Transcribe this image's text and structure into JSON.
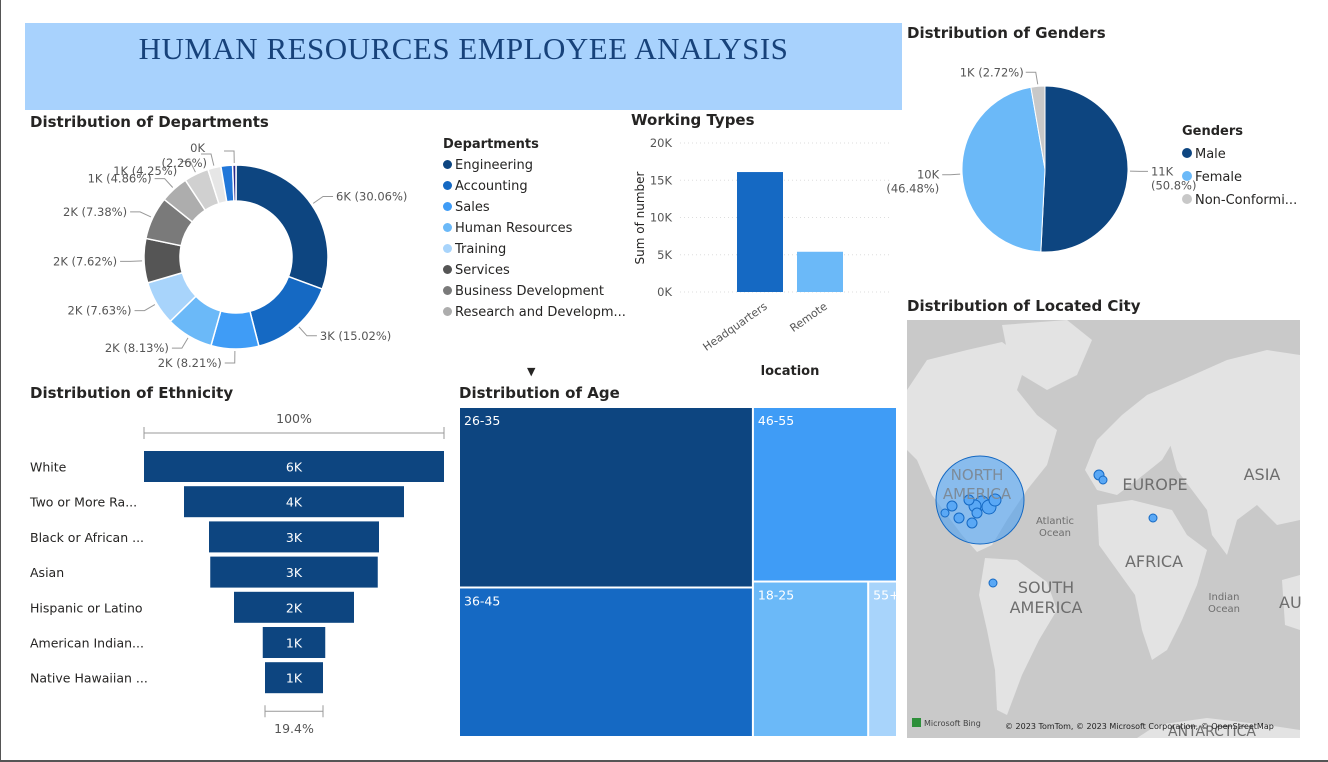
{
  "page_title": "HUMAN RESOURCES EMPLOYEE ANALYSIS",
  "colors": {
    "banner": "#a8d2fd",
    "title": "#17427a",
    "dark_blue": "#0d4580",
    "mid_blue": "#1569c3",
    "bright_blue": "#3f9cf6",
    "light_blue": "#6bb9f8",
    "pale_blue": "#a8d4fb",
    "map_land": "#e2e2e2",
    "map_water": "#c9c9c9"
  },
  "departments_legend": {
    "title": "Departments",
    "items": [
      "Engineering",
      "Accounting",
      "Sales",
      "Human Resources",
      "Training",
      "Services",
      "Business Development",
      "Research and Developm..."
    ],
    "more_icon": "caret-down-icon"
  },
  "genders_legend": {
    "title": "Genders",
    "items": [
      "Male",
      "Female",
      "Non-Conformi..."
    ]
  },
  "map": {
    "labels": [
      "NORTH AMERICA",
      "EUROPE",
      "ASIA",
      "AFRICA",
      "SOUTH AMERICA",
      "Atlantic Ocean",
      "Indian Ocean",
      "AU",
      "ANTARCTICA"
    ],
    "north_america_lines": [
      "NORTH",
      "AMERICA"
    ],
    "south_america_lines": [
      "SOUTH",
      "AMERICA"
    ],
    "atlantic_lines": [
      "Atlantic",
      "Ocean"
    ],
    "indian_lines": [
      "Indian",
      "Ocean"
    ],
    "bing_logo": "Microsoft Bing",
    "copyright": "© 2023 TomTom, © 2023 Microsoft Corporation, © OpenStreetMap"
  },
  "chart_data": [
    {
      "type": "pie",
      "variant": "donut",
      "title": "Distribution of Departments",
      "legend_position": "right",
      "slices": [
        {
          "name": "Engineering",
          "value": 30.06,
          "label": "6K (30.06%)",
          "color": "#0d4580"
        },
        {
          "name": "Accounting",
          "value": 15.02,
          "label": "3K (15.02%)",
          "color": "#1569c3"
        },
        {
          "name": "Sales",
          "value": 8.21,
          "label": "2K (8.21%)",
          "color": "#3f9cf6"
        },
        {
          "name": "Human Resources",
          "value": 8.13,
          "label": "2K (8.13%)",
          "color": "#6bb9f8"
        },
        {
          "name": "Training",
          "value": 7.63,
          "label": "2K (7.63%)",
          "color": "#a8d4fb"
        },
        {
          "name": "Services",
          "value": 7.62,
          "label": "2K (7.62%)",
          "color": "#555555"
        },
        {
          "name": "Business Development",
          "value": 7.38,
          "label": "2K (7.38%)",
          "color": "#7a7a7a"
        },
        {
          "name": "Research and Developm...",
          "value": 4.86,
          "label": "1K (4.86%)",
          "color": "#adadad"
        },
        {
          "name": "",
          "value": 4.25,
          "label": "1K (4.25%)",
          "color": "#d0d0d0"
        },
        {
          "name": "",
          "value": 2.26,
          "label": "(2.26%)",
          "color": "#e6e6e6"
        },
        {
          "name": "",
          "value": 2.0,
          "label": "",
          "color": "#2177d9"
        },
        {
          "name": "",
          "value": 0.58,
          "label": "0K",
          "color": "#2a2a8c"
        }
      ]
    },
    {
      "type": "bar",
      "title": "Working Types",
      "categories": [
        "Headquarters",
        "Remote"
      ],
      "values": [
        16100,
        5400
      ],
      "xlabel": "location",
      "ylabel": "Sum of number",
      "ylim": [
        0,
        20000
      ],
      "y_ticks": [
        "0K",
        "5K",
        "10K",
        "15K",
        "20K"
      ],
      "grid": true,
      "colors": [
        "#1569c3",
        "#6bb9f8"
      ]
    },
    {
      "type": "pie",
      "title": "Distribution of Genders",
      "legend_position": "right",
      "slices": [
        {
          "name": "Male",
          "value": 50.8,
          "label": "11K",
          "label2": "(50.8%)",
          "color": "#0d4580"
        },
        {
          "name": "Female",
          "value": 46.48,
          "label": "10K",
          "label2": "(46.48%)",
          "color": "#6bb9f8"
        },
        {
          "name": "Non-Conformi...",
          "value": 2.72,
          "label": "1K (2.72%)",
          "color": "#c8c8c8"
        }
      ]
    },
    {
      "type": "bar",
      "variant": "funnel",
      "title": "Distribution of Ethnicity",
      "categories": [
        "White",
        "Two or More Ra...",
        "Black or African ...",
        "Asian",
        "Hispanic or Latino",
        "American Indian...",
        "Native Hawaiian ..."
      ],
      "values": [
        6000,
        4400,
        3400,
        3350,
        2400,
        1250,
        1160
      ],
      "value_labels": [
        "6K",
        "4K",
        "3K",
        "3K",
        "2K",
        "1K",
        "1K"
      ],
      "top_percent": "100%",
      "bottom_percent": "19.4%",
      "color": "#0d4580"
    },
    {
      "type": "heatmap",
      "variant": "treemap",
      "title": "Distribution of Age",
      "items": [
        {
          "name": "26-35",
          "value": 36.7,
          "color": "#0d4580"
        },
        {
          "name": "36-45",
          "value": 30.4,
          "color": "#1569c3"
        },
        {
          "name": "46-55",
          "value": 17.4,
          "color": "#3f9cf6"
        },
        {
          "name": "18-25",
          "value": 12.4,
          "color": "#6bb9f8"
        },
        {
          "name": "55+",
          "value": 3.1,
          "color": "#a8d4fb"
        }
      ]
    },
    {
      "type": "scatter",
      "variant": "bubble-map",
      "title": "Distribution of Located City"
    }
  ]
}
